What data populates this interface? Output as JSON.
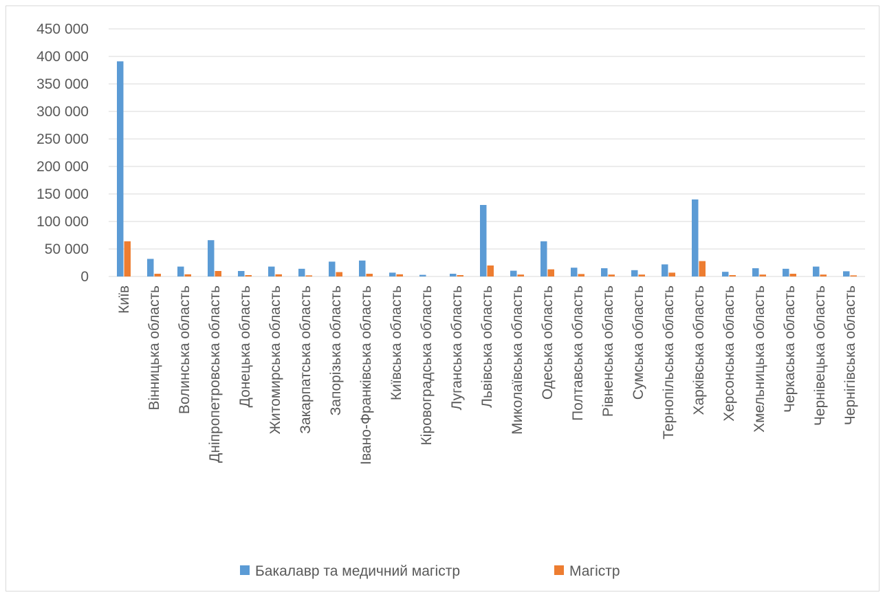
{
  "chart_data": {
    "type": "bar",
    "title": "",
    "xlabel": "",
    "ylabel": "",
    "ylim": [
      0,
      450000
    ],
    "y_ticks": [
      0,
      50000,
      100000,
      150000,
      200000,
      250000,
      300000,
      350000,
      400000,
      450000
    ],
    "y_tick_labels": [
      "0",
      "50 000",
      "100 000",
      "150 000",
      "200 000",
      "250 000",
      "300 000",
      "350 000",
      "400 000",
      "450 000"
    ],
    "grid": true,
    "legend_position": "bottom",
    "categories": [
      "Київ",
      "Вінницька область",
      "Волинська область",
      "Дніпропетровська область",
      "Донецька область",
      "Житомирська область",
      "Закарпатська область",
      "Запорізька область",
      "Івано-Франківська область",
      "Київська область",
      "Кіровоградська область",
      "Луганська область",
      "Львівська область",
      "Миколаївська область",
      "Одеська область",
      "Полтавська область",
      "Рівненська область",
      "Сумська область",
      "Тернопільська область",
      "Харківська область",
      "Херсонська область",
      "Хмельницька область",
      "Черкаська область",
      "Чернівецька область",
      "Чернігівська область"
    ],
    "series": [
      {
        "name": "Бакалавр та медичний магістр",
        "color": "#5b9bd5",
        "values": [
          391000,
          32000,
          18000,
          66000,
          10000,
          18000,
          14000,
          27000,
          29000,
          7000,
          3000,
          5000,
          130000,
          10500,
          64000,
          16000,
          15000,
          11500,
          22000,
          140000,
          8500,
          15000,
          14000,
          18000,
          9500
        ]
      },
      {
        "name": "Магістр",
        "color": "#ed7d31",
        "values": [
          64000,
          5000,
          4000,
          10000,
          2500,
          4000,
          2000,
          8000,
          5000,
          4000,
          0,
          2500,
          20000,
          3500,
          13000,
          4500,
          3500,
          3500,
          7000,
          28000,
          2500,
          3500,
          5000,
          3500,
          2000
        ]
      }
    ]
  }
}
